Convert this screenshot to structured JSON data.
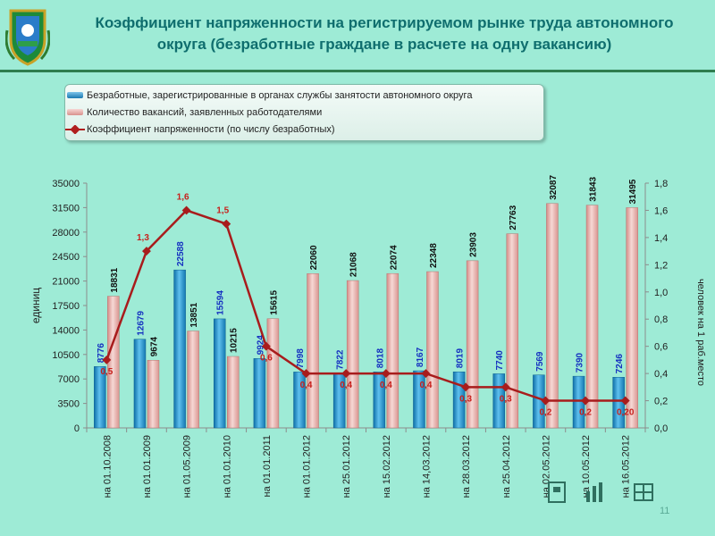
{
  "header": {
    "title_line1": "Коэффициент напряженности на регистрируемом рынке труда автономного",
    "title_line2": "округа (безработные граждане в расчете на одну вакансию)"
  },
  "legend": {
    "items": [
      "Безработные, зарегистрированные в органах службы занятости автономного округа",
      "Количество вакансий, заявленных работодателями",
      "Коэффициент напряженности (по числу безработных)"
    ]
  },
  "colors": {
    "unemployed": "#1F8FC8",
    "vacancies": "#E8A8A4",
    "ratio": "#B01E1E",
    "grid": "#9A9A9A"
  },
  "page_number": "11",
  "chart_data": {
    "type": "bar",
    "categories": [
      "на 01.10.2008",
      "на 01.01.2009",
      "на 01.05.2009",
      "на 01.01.2010",
      "на 01.01.2011",
      "на 01.01.2012",
      "на 25.01.2012",
      "на 15.02.2012",
      "на 14,03.2012",
      "на 28.03.2012",
      "на 25.04.2012",
      "на 02.05.2012",
      "на 10.05.2012",
      "на 16.05.2012"
    ],
    "series": [
      {
        "name": "Безработные, зарегистрированные в органах службы занятости автономного округа",
        "type": "bar",
        "axis": "left",
        "values": [
          8776,
          12679,
          22588,
          15594,
          9924,
          7998,
          7822,
          8018,
          8167,
          8019,
          7740,
          7569,
          7390,
          7246
        ],
        "labels": [
          "8776",
          "12679",
          "22588",
          "15594",
          "9924",
          "7998",
          "7822",
          "8018",
          "8167",
          "8019",
          "7740",
          "7569",
          "7390",
          "7246"
        ]
      },
      {
        "name": "Количество вакансий, заявленных работодателями",
        "type": "bar",
        "axis": "left",
        "values": [
          18831,
          9674,
          13851,
          10215,
          15615,
          22060,
          21068,
          22074,
          22348,
          23903,
          27763,
          32087,
          31843,
          31495
        ],
        "labels": [
          "18831",
          "9674",
          "13851",
          "10215",
          "15615",
          "22060",
          "21068",
          "22074",
          "22348",
          "23903",
          "27763",
          "32087",
          "31843",
          "31495"
        ]
      },
      {
        "name": "Коэффициент напряженности (по числу безработных)",
        "type": "line",
        "axis": "right",
        "values": [
          0.5,
          1.3,
          1.6,
          1.5,
          0.6,
          0.4,
          0.4,
          0.4,
          0.4,
          0.3,
          0.3,
          0.2,
          0.2,
          0.2
        ],
        "labels": [
          "0,5",
          "1,3",
          "1,6",
          "1,5",
          "0,6",
          "0,4",
          "0,4",
          "0,4",
          "0,4",
          "0,3",
          "0,3",
          "0,2",
          "0,2",
          "0,20"
        ]
      }
    ],
    "ylabel": "единиц",
    "y2label": "человек на 1 раб.место",
    "ylim": [
      0,
      35000
    ],
    "y2lim": [
      0,
      1.8
    ],
    "yticks": [
      "0",
      "3500",
      "7000",
      "10500",
      "14000",
      "17500",
      "21000",
      "24500",
      "28000",
      "31500",
      "35000"
    ],
    "y2ticks": [
      "0,0",
      "0,2",
      "0,4",
      "0,6",
      "0,8",
      "1,0",
      "1,2",
      "1,4",
      "1,6",
      "1,8"
    ],
    "grid": false,
    "legend_position": "top-left"
  }
}
